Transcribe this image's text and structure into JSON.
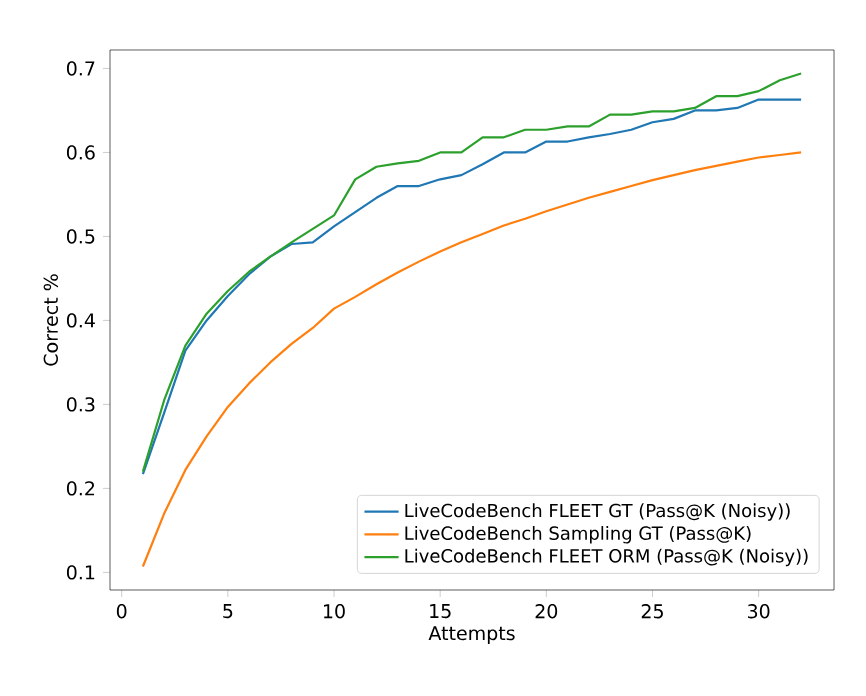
{
  "chart_data": {
    "type": "line",
    "xlabel": "Attempts",
    "ylabel": "Correct %",
    "x": [
      1,
      2,
      3,
      4,
      5,
      6,
      7,
      8,
      9,
      10,
      11,
      12,
      13,
      14,
      15,
      16,
      17,
      18,
      19,
      20,
      21,
      22,
      23,
      24,
      25,
      26,
      27,
      28,
      29,
      30,
      31,
      32
    ],
    "series": [
      {
        "name": "LiveCodeBench FLEET GT (Pass@K (Noisy))",
        "color": "#1f77b4",
        "values": [
          0.217,
          0.29,
          0.364,
          0.4,
          0.429,
          0.455,
          0.476,
          0.491,
          0.493,
          0.512,
          0.529,
          0.546,
          0.56,
          0.56,
          0.568,
          0.573,
          0.586,
          0.6,
          0.6,
          0.613,
          0.613,
          0.618,
          0.622,
          0.627,
          0.636,
          0.64,
          0.65,
          0.65,
          0.653,
          0.663,
          0.663,
          0.663
        ]
      },
      {
        "name": "LiveCodeBench Sampling GT (Pass@K)",
        "color": "#ff7f0e",
        "values": [
          0.107,
          0.17,
          0.222,
          0.262,
          0.297,
          0.325,
          0.35,
          0.372,
          0.391,
          0.414,
          0.428,
          0.443,
          0.457,
          0.47,
          0.482,
          0.493,
          0.503,
          0.513,
          0.521,
          0.53,
          0.538,
          0.546,
          0.553,
          0.56,
          0.567,
          0.573,
          0.579,
          0.584,
          0.589,
          0.594,
          0.597,
          0.6
        ]
      },
      {
        "name": "LiveCodeBench FLEET ORM (Pass@K (Noisy))",
        "color": "#2ca02c",
        "values": [
          0.22,
          0.305,
          0.37,
          0.408,
          0.435,
          0.458,
          0.476,
          0.493,
          0.509,
          0.525,
          0.568,
          0.583,
          0.587,
          0.59,
          0.6,
          0.6,
          0.618,
          0.618,
          0.627,
          0.627,
          0.631,
          0.631,
          0.645,
          0.645,
          0.649,
          0.649,
          0.653,
          0.667,
          0.667,
          0.673,
          0.686,
          0.694
        ]
      }
    ],
    "xlim": [
      -0.55,
      33.55
    ],
    "ylim": [
      0.079,
      0.722
    ],
    "xticks": [
      0,
      5,
      10,
      15,
      20,
      25,
      30
    ],
    "yticks": [
      {
        "value": 0.1,
        "label": "0.1"
      },
      {
        "value": 0.2,
        "label": "0.2"
      },
      {
        "value": 0.3,
        "label": "0.3"
      },
      {
        "value": 0.4,
        "label": "0.4"
      },
      {
        "value": 0.5,
        "label": "0.5"
      },
      {
        "value": 0.6,
        "label": "0.6"
      },
      {
        "value": 0.7,
        "label": "0.7"
      }
    ],
    "grid": false,
    "legend": "bottom right",
    "marker": "none",
    "line_style": "solid"
  }
}
